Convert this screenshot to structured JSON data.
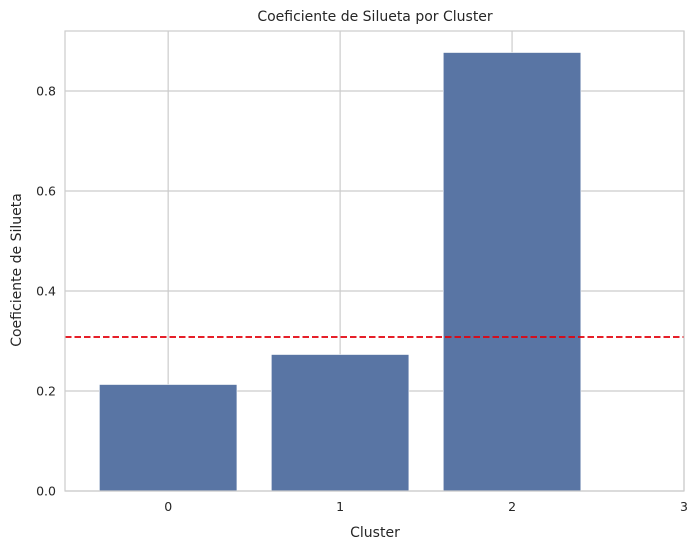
{
  "chart_data": {
    "type": "bar",
    "title": "Coeficiente de Silueta por Cluster",
    "xlabel": "Cluster",
    "ylabel": "Coeficiente de Silueta",
    "categories": [
      "0",
      "1",
      "2"
    ],
    "values": [
      0.213,
      0.273,
      0.877
    ],
    "x_ticks": [
      "0",
      "1",
      "2",
      "3"
    ],
    "x_range": [
      -0.6,
      3
    ],
    "ylim": [
      0,
      0.92
    ],
    "y_ticks": [
      "0.0",
      "0.2",
      "0.4",
      "0.6",
      "0.8"
    ],
    "reference_line": {
      "y": 0.308,
      "style": "dashed",
      "color": "#e3000b"
    },
    "grid": true,
    "bar_color": "#5975a4",
    "grid_color": "#cccccc"
  }
}
